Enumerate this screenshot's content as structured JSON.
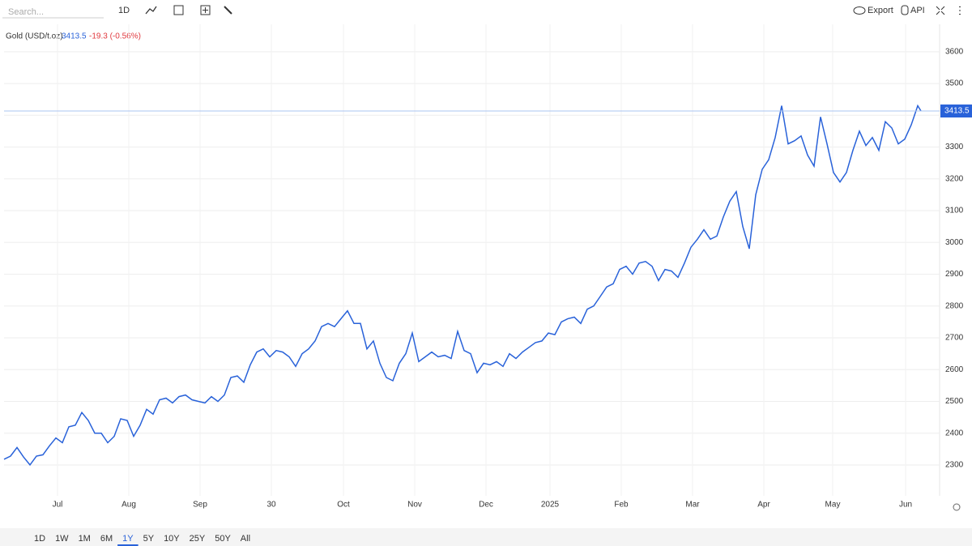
{
  "toolbar": {
    "search_placeholder": "Search...",
    "interval": "1D",
    "export": "Export",
    "api": "API"
  },
  "chart_data": {
    "type": "line",
    "title": "Gold (USD/t.oz)",
    "last_price": 3413.5,
    "change": "-19.3 (-0.56%)",
    "x": [
      0,
      2,
      4,
      6,
      8,
      10,
      12,
      14,
      16,
      18,
      20,
      22,
      24,
      26,
      28,
      30,
      32,
      34,
      36,
      38,
      40,
      42,
      44,
      46,
      48,
      50,
      52,
      54,
      56,
      58,
      60,
      62,
      64,
      66,
      68,
      70,
      72,
      74,
      76,
      78,
      80,
      82,
      84,
      86,
      88,
      90,
      92,
      94,
      96,
      98,
      100,
      102,
      104,
      106,
      108,
      110,
      112,
      114,
      116,
      118,
      120,
      122,
      124,
      126,
      128,
      130,
      132,
      134,
      136,
      138,
      140,
      142,
      144,
      146,
      148,
      150,
      152,
      154,
      156,
      158,
      160,
      162,
      164,
      166,
      168,
      170,
      172,
      174,
      176,
      178,
      180,
      182,
      184,
      186,
      188,
      190,
      192,
      194,
      196,
      198,
      200,
      202,
      204,
      206,
      208,
      210,
      212,
      214,
      216,
      218,
      220,
      222,
      224,
      226,
      228,
      230,
      232,
      234,
      236,
      238,
      240,
      242,
      244,
      246,
      248,
      250,
      252,
      254,
      256,
      258,
      260,
      262,
      264,
      266,
      268,
      270,
      272,
      274,
      276,
      278,
      280,
      282,
      283
    ],
    "series": [
      {
        "name": "Gold",
        "color": "#2962d9",
        "values": [
          2318,
          2328,
          2355,
          2325,
          2300,
          2328,
          2332,
          2360,
          2385,
          2370,
          2420,
          2425,
          2465,
          2440,
          2400,
          2400,
          2370,
          2390,
          2445,
          2440,
          2390,
          2425,
          2475,
          2460,
          2505,
          2510,
          2495,
          2515,
          2520,
          2505,
          2500,
          2495,
          2515,
          2500,
          2520,
          2575,
          2580,
          2560,
          2615,
          2655,
          2665,
          2640,
          2660,
          2655,
          2640,
          2610,
          2650,
          2665,
          2690,
          2735,
          2745,
          2735,
          2760,
          2785,
          2745,
          2745,
          2665,
          2690,
          2620,
          2575,
          2565,
          2620,
          2650,
          2715,
          2625,
          2640,
          2655,
          2640,
          2645,
          2635,
          2720,
          2660,
          2650,
          2590,
          2620,
          2615,
          2625,
          2610,
          2650,
          2635,
          2655,
          2670,
          2685,
          2690,
          2715,
          2710,
          2750,
          2760,
          2765,
          2745,
          2790,
          2800,
          2830,
          2860,
          2870,
          2915,
          2925,
          2900,
          2935,
          2940,
          2925,
          2880,
          2915,
          2910,
          2890,
          2935,
          2985,
          3010,
          3040,
          3010,
          3020,
          3080,
          3130,
          3160,
          3050,
          2980,
          3150,
          3230,
          3260,
          3330,
          3430,
          3310,
          3320,
          3335,
          3275,
          3240,
          3395,
          3310,
          3220,
          3190,
          3220,
          3290,
          3350,
          3305,
          3330,
          3290,
          3380,
          3360,
          3310,
          3325,
          3370,
          3430,
          3413.5
        ]
      }
    ],
    "xlim": [
      0,
      288.75
    ],
    "xticks": [
      {
        "value": 16.5,
        "label": "Jul"
      },
      {
        "value": 38.5,
        "label": "Aug"
      },
      {
        "value": 60.5,
        "label": "Sep"
      },
      {
        "value": 82.5,
        "label": "30"
      },
      {
        "value": 104.75,
        "label": "Oct"
      },
      {
        "value": 126.75,
        "label": "Nov"
      },
      {
        "value": 148.75,
        "label": "Dec"
      },
      {
        "value": 168.5,
        "label": "2025"
      },
      {
        "value": 190.5,
        "label": "Feb"
      },
      {
        "value": 212.5,
        "label": "Mar"
      },
      {
        "value": 234.5,
        "label": "Apr"
      },
      {
        "value": 255.75,
        "label": "May"
      },
      {
        "value": 278.25,
        "label": "Jun"
      }
    ],
    "ylim": [
      2203,
      3648
    ],
    "yticks": [
      2300,
      2400,
      2500,
      2600,
      2700,
      2800,
      2900,
      3000,
      3100,
      3200,
      3300,
      3400,
      3500,
      3600
    ],
    "grid": true
  },
  "range_buttons": {
    "items": [
      "1D",
      "1W",
      "1M",
      "6M",
      "1Y",
      "5Y",
      "10Y",
      "25Y",
      "50Y",
      "All"
    ],
    "active": "1Y"
  }
}
